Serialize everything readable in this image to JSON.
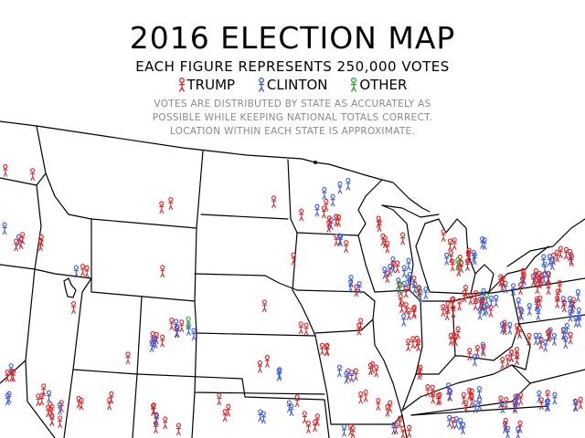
{
  "title": "2016 ELECTION MAP",
  "subtitle": "EACH FIGURE REPRESENTS 250,000 VOTES",
  "legend": {
    "items": [
      {
        "label": "TRUMP",
        "color": "#d62728"
      },
      {
        "label": "CLINTON",
        "color": "#3a5bd9"
      },
      {
        "label": "OTHER",
        "color": "#2ca02c"
      }
    ]
  },
  "notes": [
    "VOTES ARE DISTRIBUTED BY STATE AS ACCURATELY AS",
    "POSSIBLE WHILE KEEPING NATIONAL TOTALS CORRECT.",
    "LOCATION WITHIN EACH STATE IS APPROXIMATE."
  ],
  "colors": {
    "trump": "#d62728",
    "clinton": "#3a5bd9",
    "other": "#2ca02c",
    "border": "#000000"
  },
  "figure_value_votes": 250000
}
